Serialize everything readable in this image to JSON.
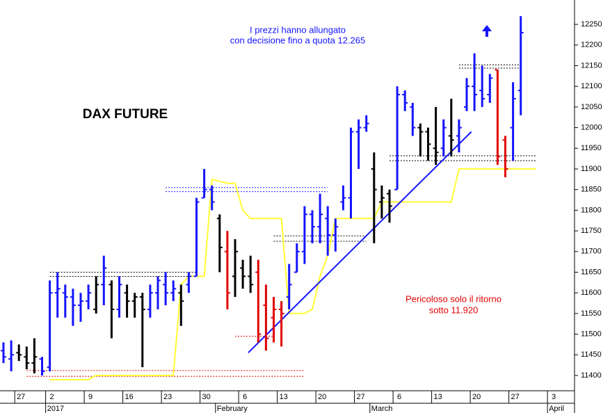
{
  "chart_data": {
    "type": "ohlc",
    "title": "DAX FUTURE",
    "annotations": [
      {
        "text": "I prezzi hanno allungato",
        "color": "#1414ff"
      },
      {
        "text": "con decisione fino a quota 12.265",
        "color": "#1414ff"
      },
      {
        "text": "Pericoloso solo il ritorno",
        "color": "#e00000"
      },
      {
        "text": "sotto 11.920",
        "color": "#e00000"
      }
    ],
    "categories": [
      null,
      null,
      "27",
      null,
      null,
      null,
      "2",
      null,
      null,
      null,
      null,
      "9",
      null,
      null,
      null,
      null,
      "16",
      null,
      null,
      null,
      null,
      "23",
      null,
      null,
      null,
      null,
      "30",
      null,
      null,
      null,
      null,
      "6",
      null,
      null,
      null,
      null,
      "13",
      null,
      null,
      null,
      null,
      "20",
      null,
      null,
      null,
      null,
      "27",
      null,
      null,
      null,
      null,
      "6",
      null,
      null,
      null,
      null,
      "13",
      null,
      null,
      null,
      null,
      "20",
      null,
      null,
      null,
      null,
      "27",
      null,
      null,
      null,
      null,
      "3",
      null,
      null
    ],
    "month_labels": [
      {
        "label": "2017",
        "index": 6
      },
      {
        "label": "February",
        "index": 28
      },
      {
        "label": "March",
        "index": 48
      },
      {
        "label": "April",
        "index": 71
      }
    ],
    "open": [
      11460,
      11440,
      11455,
      11445,
      11430,
      11440,
      11420,
      11600,
      11600,
      11590,
      11570,
      11580,
      11560,
      11620,
      11620,
      11560,
      11600,
      11580,
      11590,
      11560,
      11600,
      11620,
      11600,
      11600,
      11620,
      11640,
      11830,
      11850,
      11780,
      11700,
      11640,
      11660,
      11640,
      11650,
      11570,
      11540,
      11560,
      11590,
      11650,
      11700,
      11790,
      11760,
      11780,
      11740,
      11820,
      11830,
      11990,
      12000,
      11900,
      11820,
      11840,
      11850,
      12080,
      12050,
      12000,
      11990,
      11950,
      11950,
      11980,
      11980,
      12050,
      12100,
      12090,
      12080,
      12140,
      11970,
      12000,
      12090,
      null,
      null,
      null,
      null,
      null,
      null
    ],
    "high": [
      11480,
      11485,
      11475,
      11470,
      11490,
      11445,
      11630,
      11650,
      11620,
      11610,
      11600,
      11620,
      11640,
      11690,
      11630,
      11640,
      11620,
      11600,
      11600,
      11620,
      11640,
      11650,
      11630,
      11620,
      11650,
      11830,
      11900,
      11860,
      11790,
      11750,
      11730,
      11680,
      11690,
      11680,
      11620,
      11590,
      11580,
      11670,
      11720,
      11810,
      11800,
      11840,
      11810,
      11780,
      11860,
      12000,
      12020,
      12030,
      11940,
      11860,
      11850,
      12100,
      12090,
      12060,
      12010,
      12000,
      12050,
      12020,
      12070,
      12020,
      12120,
      12180,
      12150,
      12130,
      12140,
      11980,
      12110,
      12270,
      null,
      null,
      null,
      null,
      null,
      null
    ],
    "low": [
      11430,
      11410,
      11435,
      11415,
      11405,
      11400,
      11410,
      11540,
      11540,
      11520,
      11530,
      11560,
      11550,
      11570,
      11490,
      11540,
      11540,
      11540,
      11420,
      11540,
      11560,
      11570,
      11580,
      11520,
      11600,
      11640,
      11830,
      11800,
      11650,
      11560,
      11590,
      11610,
      11600,
      11480,
      11460,
      11480,
      11470,
      11560,
      11650,
      11670,
      11720,
      11720,
      11690,
      11700,
      11800,
      11780,
      11900,
      11990,
      11720,
      11780,
      11770,
      11850,
      12040,
      11980,
      11930,
      11920,
      11910,
      11930,
      11930,
      11940,
      12040,
      12040,
      12050,
      12060,
      11910,
      11880,
      11920,
      12030,
      null,
      null,
      null,
      null,
      null,
      null
    ],
    "close": [
      11445,
      11450,
      11450,
      11430,
      11445,
      11410,
      11600,
      11610,
      11590,
      11570,
      11580,
      11600,
      11620,
      11660,
      11560,
      11620,
      11580,
      11590,
      11560,
      11600,
      11630,
      11600,
      11610,
      11580,
      11640,
      11820,
      11850,
      11820,
      11710,
      11600,
      11700,
      11640,
      11620,
      11500,
      11490,
      11560,
      11550,
      11620,
      11700,
      11790,
      11760,
      11790,
      11740,
      11760,
      11830,
      11990,
      12000,
      12010,
      11850,
      11830,
      11810,
      12080,
      12060,
      12000,
      11990,
      11960,
      11940,
      12000,
      11970,
      12000,
      12100,
      12080,
      12070,
      12120,
      11930,
      11900,
      12070,
      12230,
      null,
      null,
      null,
      null,
      null,
      null
    ],
    "bar_colors": [
      "#1414ff",
      "#1414ff",
      "#000000",
      "#000000",
      "#000000",
      "#1414ff",
      "#1414ff",
      "#1414ff",
      "#1414ff",
      "#1414ff",
      "#1414ff",
      "#1414ff",
      "#000000",
      "#1414ff",
      "#000000",
      "#1414ff",
      "#000000",
      "#000000",
      "#000000",
      "#1414ff",
      "#1414ff",
      "#1414ff",
      "#1414ff",
      "#000000",
      "#1414ff",
      "#1414ff",
      "#1414ff",
      "#1414ff",
      "#000000",
      "#e00000",
      "#000000",
      "#000000",
      "#000000",
      "#e00000",
      "#e00000",
      "#e00000",
      "#e00000",
      "#1414ff",
      "#1414ff",
      "#1414ff",
      "#1414ff",
      "#1414ff",
      "#1414ff",
      "#1414ff",
      "#1414ff",
      "#1414ff",
      "#1414ff",
      "#1414ff",
      "#000000",
      "#000000",
      "#000000",
      "#1414ff",
      "#1414ff",
      "#1414ff",
      "#000000",
      "#000000",
      "#000000",
      "#1414ff",
      "#000000",
      "#1414ff",
      "#1414ff",
      "#1414ff",
      "#1414ff",
      "#1414ff",
      "#e00000",
      "#e00000",
      "#1414ff",
      "#1414ff",
      null,
      null,
      null,
      null,
      null,
      null
    ],
    "overlay": {
      "color": "#ffff33",
      "values": [
        null,
        null,
        null,
        null,
        null,
        null,
        11390,
        11390,
        11390,
        11390,
        11390,
        11390,
        11400,
        11400,
        11400,
        11400,
        11400,
        11400,
        11400,
        11400,
        11400,
        11400,
        11400,
        11620,
        11640,
        11640,
        11640,
        11875,
        11870,
        11865,
        11865,
        11800,
        11780,
        11780,
        11780,
        11780,
        11780,
        11550,
        11550,
        11550,
        11560,
        11640,
        11690,
        11780,
        11780,
        11780,
        11780,
        11780,
        11780,
        11820,
        11820,
        11820,
        11820,
        11820,
        11820,
        11820,
        11820,
        11820,
        11820,
        11900,
        11900,
        11900,
        11900,
        11900,
        11900,
        11900,
        11900,
        11900,
        11900,
        11900,
        null,
        null,
        null,
        null
      ]
    },
    "trendline": {
      "color": "#1414ff",
      "x": [
        31.7,
        60.6
      ],
      "values": [
        11455,
        11990
      ]
    },
    "levels": [
      {
        "value": 11855,
        "color": "#1414ff",
        "from": 21,
        "to": 42
      },
      {
        "value": 11845,
        "color": "#1414ff",
        "from": 21,
        "to": 42
      },
      {
        "value": 11650,
        "color": "#000000",
        "from": 6,
        "to": 25
      },
      {
        "value": 11640,
        "color": "#000000",
        "from": 6,
        "to": 25
      },
      {
        "value": 11412,
        "color": "#e00000",
        "from": 3,
        "to": 39
      },
      {
        "value": 11398,
        "color": "#e00000",
        "from": 3,
        "to": 39
      },
      {
        "value": 11738,
        "color": "#000000",
        "from": 35,
        "to": 47
      },
      {
        "value": 11725,
        "color": "#000000",
        "from": 35,
        "to": 47
      },
      {
        "value": 12152,
        "color": "#000000",
        "from": 59,
        "to": 67
      },
      {
        "value": 12144,
        "color": "#000000",
        "from": 59,
        "to": 67
      },
      {
        "value": 11932,
        "color": "#000000",
        "from": 50,
        "to": 69
      },
      {
        "value": 11920,
        "color": "#000000",
        "from": 50,
        "to": 69
      },
      {
        "value": 11495,
        "color": "#e00000",
        "from": 30,
        "to": 35
      }
    ],
    "ylim": [
      11363,
      12309
    ],
    "yticks": [
      11400,
      11450,
      11500,
      11550,
      11600,
      11650,
      11700,
      11750,
      11800,
      11850,
      11900,
      11950,
      12000,
      12050,
      12100,
      12150,
      12200,
      12250
    ]
  }
}
